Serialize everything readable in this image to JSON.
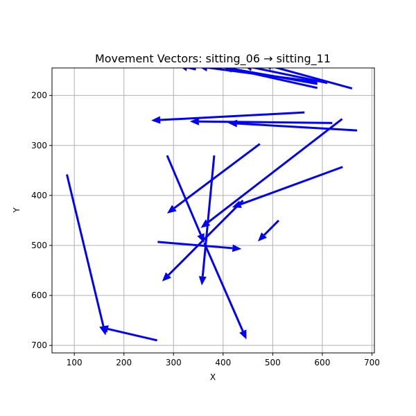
{
  "chart_data": {
    "type": "quiver",
    "title": "Movement Vectors: sitting_06 → sitting_11",
    "xlabel": "X",
    "ylabel": "Y",
    "xlim": [
      55,
      705
    ],
    "ylim": [
      715,
      145
    ],
    "y_inverted": true,
    "xticks": [
      100,
      200,
      300,
      400,
      500,
      600,
      700
    ],
    "yticks": [
      200,
      300,
      400,
      500,
      600,
      700
    ],
    "grid": true,
    "arrow_color": "#0000ff",
    "vectors": [
      {
        "x0": 85,
        "y0": 358,
        "x1": 163,
        "y1": 680
      },
      {
        "x0": 267,
        "y0": 690,
        "x1": 150,
        "y1": 663
      },
      {
        "x0": 287,
        "y0": 320,
        "x1": 362,
        "y1": 495
      },
      {
        "x0": 362,
        "y0": 495,
        "x1": 447,
        "y1": 688
      },
      {
        "x0": 382,
        "y0": 320,
        "x1": 357,
        "y1": 580
      },
      {
        "x0": 268,
        "y0": 493,
        "x1": 437,
        "y1": 507
      },
      {
        "x0": 440,
        "y0": 410,
        "x1": 277,
        "y1": 572
      },
      {
        "x0": 474,
        "y0": 297,
        "x1": 287,
        "y1": 436
      },
      {
        "x0": 512,
        "y0": 450,
        "x1": 470,
        "y1": 492
      },
      {
        "x0": 640,
        "y0": 247,
        "x1": 355,
        "y1": 465
      },
      {
        "x0": 641,
        "y0": 343,
        "x1": 418,
        "y1": 424
      },
      {
        "x0": 564,
        "y0": 234,
        "x1": 255,
        "y1": 250
      },
      {
        "x0": 620,
        "y0": 255,
        "x1": 333,
        "y1": 252
      },
      {
        "x0": 670,
        "y0": 270,
        "x1": 410,
        "y1": 255
      },
      {
        "x0": 660,
        "y0": 186,
        "x1": 480,
        "y1": 137
      },
      {
        "x0": 590,
        "y0": 185,
        "x1": 400,
        "y1": 143
      },
      {
        "x0": 610,
        "y0": 175,
        "x1": 440,
        "y1": 140
      },
      {
        "x0": 590,
        "y0": 173,
        "x1": 350,
        "y1": 142
      },
      {
        "x0": 590,
        "y0": 177,
        "x1": 380,
        "y1": 140
      },
      {
        "x0": 345,
        "y0": 148,
        "x1": 310,
        "y1": 140
      }
    ]
  }
}
